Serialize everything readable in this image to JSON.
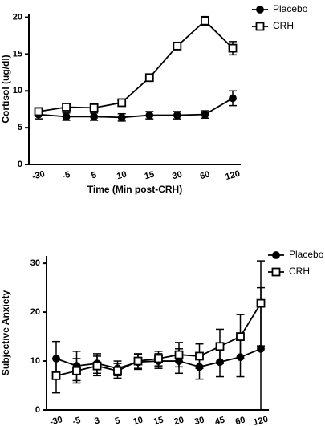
{
  "chart_data": [
    {
      "type": "line",
      "ylabel": "Cortisol (ug/dl)",
      "xlabel": "Time (Min post-CRH)",
      "categories": [
        "-30",
        "-5",
        "5",
        "10",
        "15",
        "30",
        "60",
        "120"
      ],
      "series": [
        {
          "name": "Placebo",
          "color": "#000000",
          "marker": "circle",
          "values": [
            6.8,
            6.5,
            6.5,
            6.4,
            6.7,
            6.7,
            6.8,
            9.0
          ],
          "errors": [
            0.6,
            0.5,
            0.5,
            0.5,
            0.5,
            0.5,
            0.5,
            1.0
          ]
        },
        {
          "name": "CRH",
          "color": "#000000",
          "marker": "square",
          "values": [
            7.2,
            7.8,
            7.7,
            8.4,
            11.8,
            16.1,
            19.5,
            15.8
          ],
          "errors": [
            0.5,
            0.4,
            0.4,
            0.4,
            0.4,
            0.5,
            0.6,
            0.9
          ]
        }
      ],
      "ylim": [
        0,
        20.5
      ],
      "yticks": [
        0,
        5,
        10,
        15,
        20
      ]
    },
    {
      "type": "line",
      "ylabel": "Subjective Anxiety",
      "xlabel": "Time (Min post-CRH)",
      "categories": [
        "-30",
        "-5",
        "3",
        "5",
        "10",
        "15",
        "20",
        "30",
        "45",
        "60",
        "120"
      ],
      "series": [
        {
          "name": "Placebo",
          "color": "#000000",
          "marker": "circle",
          "values": [
            10.5,
            9,
            9.5,
            8.5,
            9.8,
            10,
            10,
            8.8,
            9.8,
            10.8,
            12.5
          ],
          "errors": [
            3.5,
            3,
            2,
            1.5,
            1.5,
            1.5,
            2.5,
            2.5,
            3,
            4,
            12.5
          ]
        },
        {
          "name": "CRH",
          "color": "#000000",
          "marker": "square",
          "values": [
            7,
            8,
            9,
            8,
            10,
            10.5,
            11.3,
            11,
            13,
            15,
            21.8
          ],
          "errors": [
            3.5,
            2.5,
            2,
            1.5,
            1.5,
            1.5,
            2.5,
            2.5,
            3.5,
            4.5,
            8.7
          ]
        }
      ],
      "ylim": [
        0,
        31.5
      ],
      "yticks": [
        0,
        10,
        20,
        30
      ]
    }
  ]
}
